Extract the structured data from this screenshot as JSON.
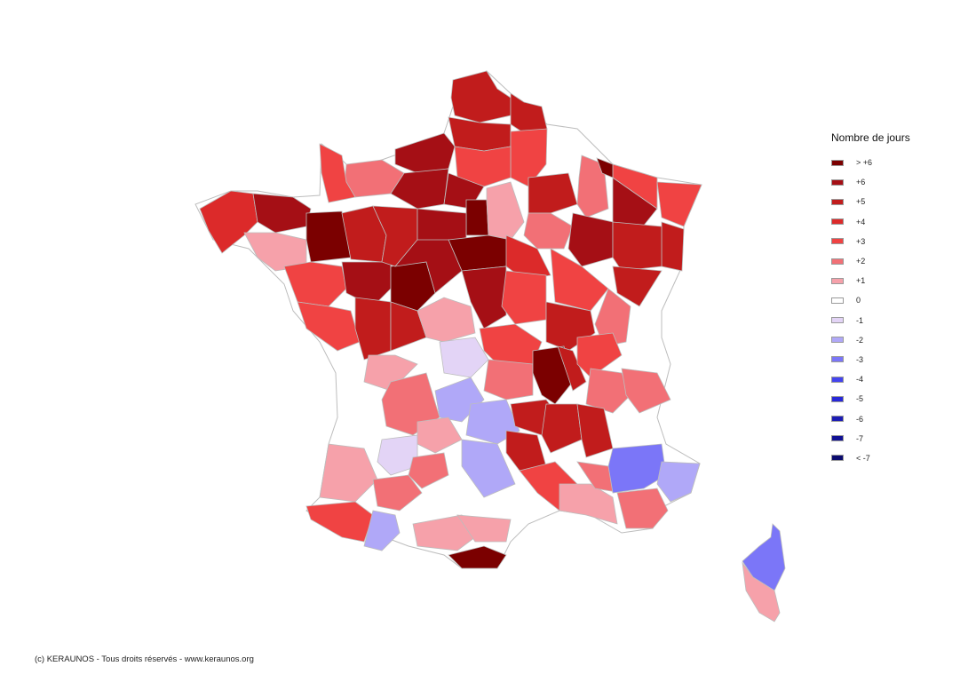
{
  "legend": {
    "title": "Nombre de jours",
    "items": [
      {
        "label": "> +6",
        "color": "#7b0000"
      },
      {
        "label": "+6",
        "color": "#a50f15"
      },
      {
        "label": "+5",
        "color": "#c11c1c"
      },
      {
        "label": "+4",
        "color": "#dc2a2a"
      },
      {
        "label": "+3",
        "color": "#f04343"
      },
      {
        "label": "+2",
        "color": "#f27076"
      },
      {
        "label": "+1",
        "color": "#f6a1aa"
      },
      {
        "label": "0",
        "color": "#ffffff"
      },
      {
        "label": "-1",
        "color": "#e3d4f6"
      },
      {
        "label": "-2",
        "color": "#b0a8f8"
      },
      {
        "label": "-3",
        "color": "#7b76f8"
      },
      {
        "label": "-4",
        "color": "#4444ee"
      },
      {
        "label": "-5",
        "color": "#2828d8"
      },
      {
        "label": "-6",
        "color": "#1c1cb4"
      },
      {
        "label": "-7",
        "color": "#101094"
      },
      {
        "label": "< -7",
        "color": "#0b0b6e"
      }
    ]
  },
  "copyright": "(c) KERAUNOS - Tous droits réservés - www.keraunos.org"
}
